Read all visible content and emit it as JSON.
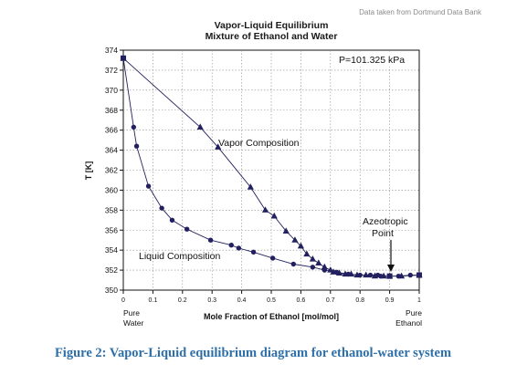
{
  "source_note": "Data taken from Dortmund Data Bank",
  "caption": "Figure 2: Vapor-Liquid equilibrium diagram for ethanol-water system",
  "colors": {
    "series": "#22205e",
    "grid": "#8c8c8c",
    "caption": "#2e6fa8",
    "source_note": "#8a8a8a"
  },
  "chart_data": {
    "type": "line",
    "title": "Vapor-Liquid Equilibrium",
    "subtitle": "Mixture of Ethanol and Water",
    "xlabel": "Mole Fraction of Ethanol [mol/mol]",
    "ylabel": "T [K]",
    "xlim": [
      0,
      1
    ],
    "ylim": [
      350,
      374
    ],
    "x_ticks": [
      "0",
      "0.1",
      "0.2",
      "0.3",
      "0.4",
      "0.5",
      "0.6",
      "0.7",
      "0.8",
      "0.9",
      "1"
    ],
    "y_ticks": [
      "350",
      "352",
      "354",
      "356",
      "358",
      "360",
      "362",
      "364",
      "366",
      "368",
      "370",
      "372",
      "374"
    ],
    "grid": true,
    "pressure_label": "P=101.325 kPa",
    "x_end_labels": {
      "left": [
        "Pure",
        "Water"
      ],
      "right": [
        "Pure",
        "Ethanol"
      ]
    },
    "annotations": {
      "vapor": "Vapor Composition",
      "liquid": "Liquid Composition",
      "azeotrope": [
        "Azeotropic",
        "Point"
      ]
    },
    "azeotrope": {
      "x": 0.9,
      "y": 351.4
    },
    "series": [
      {
        "name": "Vapor Composition",
        "marker": "triangle",
        "points": [
          [
            0.0,
            373.2
          ],
          [
            0.26,
            366.3
          ],
          [
            0.32,
            364.3
          ],
          [
            0.43,
            360.3
          ],
          [
            0.48,
            358.0
          ],
          [
            0.51,
            357.4
          ],
          [
            0.55,
            355.9
          ],
          [
            0.58,
            355.0
          ],
          [
            0.6,
            354.4
          ],
          [
            0.62,
            353.6
          ],
          [
            0.64,
            353.1
          ],
          [
            0.66,
            352.7
          ],
          [
            0.68,
            352.3
          ],
          [
            0.7,
            352.0
          ],
          [
            0.71,
            351.8
          ],
          [
            0.73,
            351.7
          ],
          [
            0.75,
            351.6
          ],
          [
            0.77,
            351.6
          ],
          [
            0.79,
            351.5
          ],
          [
            0.82,
            351.5
          ],
          [
            0.85,
            351.4
          ],
          [
            0.88,
            351.4
          ],
          [
            0.9,
            351.4
          ],
          [
            0.94,
            351.4
          ],
          [
            1.0,
            351.5
          ]
        ]
      },
      {
        "name": "Liquid Composition",
        "marker": "circle",
        "points": [
          [
            0.0,
            373.2
          ],
          [
            0.035,
            366.3
          ],
          [
            0.045,
            364.4
          ],
          [
            0.085,
            360.4
          ],
          [
            0.13,
            358.2
          ],
          [
            0.165,
            357.0
          ],
          [
            0.215,
            356.1
          ],
          [
            0.295,
            355.0
          ],
          [
            0.365,
            354.5
          ],
          [
            0.39,
            354.2
          ],
          [
            0.44,
            353.8
          ],
          [
            0.505,
            353.2
          ],
          [
            0.575,
            352.6
          ],
          [
            0.64,
            352.3
          ],
          [
            0.68,
            352.0
          ],
          [
            0.72,
            351.8
          ],
          [
            0.76,
            351.6
          ],
          [
            0.8,
            351.5
          ],
          [
            0.835,
            351.5
          ],
          [
            0.86,
            351.5
          ],
          [
            0.87,
            351.4
          ],
          [
            0.9,
            351.4
          ],
          [
            0.93,
            351.4
          ],
          [
            0.97,
            351.5
          ],
          [
            1.0,
            351.5
          ]
        ]
      }
    ]
  }
}
